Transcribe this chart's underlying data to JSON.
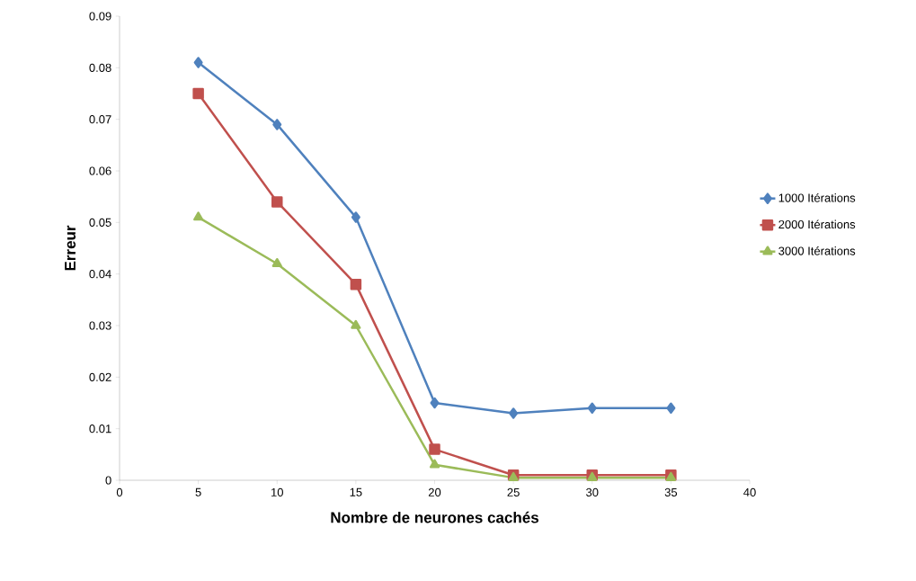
{
  "chart_data": {
    "type": "line",
    "xlabel": "Nombre de neurones cachés",
    "ylabel": "Erreur",
    "x": [
      5,
      10,
      15,
      20,
      25,
      30,
      35
    ],
    "series": [
      {
        "name": "1000 Itérations",
        "color": "#4f81bd",
        "marker": "diamond",
        "values": [
          0.081,
          0.069,
          0.051,
          0.015,
          0.013,
          0.014,
          0.014
        ]
      },
      {
        "name": "2000 Itérations",
        "color": "#c0504d",
        "marker": "square",
        "values": [
          0.075,
          0.054,
          0.038,
          0.006,
          0.001,
          0.001,
          0.001
        ]
      },
      {
        "name": "3000 Itérations",
        "color": "#9bbb59",
        "marker": "triangle",
        "values": [
          0.051,
          0.042,
          0.03,
          0.003,
          0.0005,
          0.0005,
          0.0005
        ]
      }
    ],
    "xlim": [
      0,
      40
    ],
    "xticks": [
      0,
      5,
      10,
      15,
      20,
      25,
      30,
      35,
      40
    ],
    "ylim": [
      0,
      0.09
    ],
    "yticks": [
      {
        "value": 0,
        "label": "0"
      },
      {
        "value": 0.01,
        "label": "0.01"
      },
      {
        "value": 0.02,
        "label": "0.02"
      },
      {
        "value": 0.03,
        "label": "0.03"
      },
      {
        "value": 0.04,
        "label": "0.04"
      },
      {
        "value": 0.05,
        "label": "0.05"
      },
      {
        "value": 0.06,
        "label": "0.06"
      },
      {
        "value": 0.07,
        "label": "0.07"
      },
      {
        "value": 0.08,
        "label": "0.08"
      },
      {
        "value": 0.09,
        "label": "0.09"
      }
    ],
    "grid": false,
    "legend": "right",
    "line_style": "solid"
  }
}
